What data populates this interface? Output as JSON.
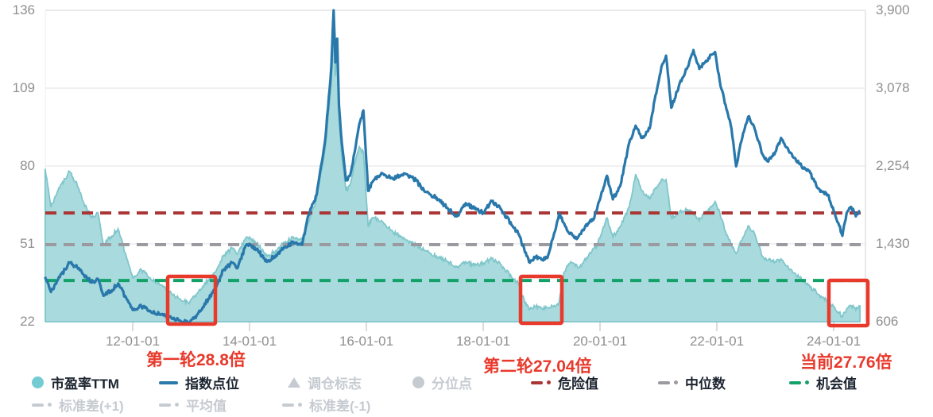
{
  "chart_data": {
    "type": "line",
    "title": "",
    "x_axis": {
      "tick_labels": [
        "12-01-01",
        "14-01-01",
        "16-01-01",
        "18-01-01",
        "20-01-01",
        "22-01-01",
        "24-01-01"
      ],
      "tick_years": [
        2012,
        2014,
        2016,
        2018,
        2020,
        2022,
        2024
      ],
      "min": 2010.5,
      "max": 2024.55,
      "grid": false
    },
    "y_left": {
      "label_values": [
        "136",
        "109",
        "80",
        "51",
        "22"
      ],
      "min": 22,
      "max": 136
    },
    "y_right": {
      "label_values": [
        "3,900",
        "3,078",
        "2,254",
        "1,430",
        "606"
      ],
      "min": 606,
      "max": 3900
    },
    "reference_lines": [
      {
        "key": "danger",
        "label": "危险值",
        "value": 61.8,
        "color": "#a93634"
      },
      {
        "key": "median",
        "label": "中位数",
        "value": 50.2,
        "color": "#9a9aa0"
      },
      {
        "key": "opportunity",
        "label": "机会值",
        "value": 37.1,
        "color": "#12a269"
      }
    ],
    "series": [
      {
        "key": "pe-ttm",
        "name": "市盈率TTM",
        "kind": "area",
        "axis": "left",
        "line_color": "#7fc6cb",
        "fill_color": "#a9dadd",
        "points": [
          [
            2010.5,
            78
          ],
          [
            2010.6,
            64
          ],
          [
            2010.72,
            70
          ],
          [
            2010.92,
            77
          ],
          [
            2011.05,
            72
          ],
          [
            2011.15,
            66
          ],
          [
            2011.3,
            60
          ],
          [
            2011.4,
            62
          ],
          [
            2011.5,
            50
          ],
          [
            2011.62,
            53
          ],
          [
            2011.75,
            56
          ],
          [
            2011.9,
            45
          ],
          [
            2012.0,
            38
          ],
          [
            2012.15,
            41
          ],
          [
            2012.3,
            38
          ],
          [
            2012.45,
            36
          ],
          [
            2012.6,
            33.5
          ],
          [
            2012.75,
            31
          ],
          [
            2012.88,
            29.5
          ],
          [
            2012.95,
            28.8
          ],
          [
            2013.05,
            31
          ],
          [
            2013.2,
            35
          ],
          [
            2013.4,
            40
          ],
          [
            2013.55,
            46
          ],
          [
            2013.7,
            49
          ],
          [
            2013.8,
            47
          ],
          [
            2013.92,
            52
          ],
          [
            2014.0,
            53
          ],
          [
            2014.15,
            50
          ],
          [
            2014.3,
            46
          ],
          [
            2014.45,
            48
          ],
          [
            2014.6,
            51
          ],
          [
            2014.75,
            53
          ],
          [
            2014.9,
            52
          ],
          [
            2015.0,
            58
          ],
          [
            2015.15,
            67
          ],
          [
            2015.3,
            86
          ],
          [
            2015.4,
            110
          ],
          [
            2015.44,
            134
          ],
          [
            2015.47,
            112
          ],
          [
            2015.5,
            120
          ],
          [
            2015.53,
            97
          ],
          [
            2015.58,
            82
          ],
          [
            2015.65,
            70
          ],
          [
            2015.72,
            72
          ],
          [
            2015.8,
            80
          ],
          [
            2015.88,
            86
          ],
          [
            2015.95,
            84
          ],
          [
            2016.03,
            57
          ],
          [
            2016.1,
            60
          ],
          [
            2016.26,
            59
          ],
          [
            2016.45,
            55
          ],
          [
            2016.67,
            52
          ],
          [
            2016.85,
            50
          ],
          [
            2017.0,
            48
          ],
          [
            2017.2,
            46
          ],
          [
            2017.4,
            44
          ],
          [
            2017.55,
            42
          ],
          [
            2017.7,
            44
          ],
          [
            2017.85,
            42.5
          ],
          [
            2018.0,
            43.5
          ],
          [
            2018.15,
            45
          ],
          [
            2018.3,
            43
          ],
          [
            2018.5,
            38
          ],
          [
            2018.6,
            36
          ],
          [
            2018.7,
            30
          ],
          [
            2018.8,
            26.5
          ],
          [
            2018.9,
            27.5
          ],
          [
            2019.0,
            26.8
          ],
          [
            2019.1,
            27.04
          ],
          [
            2019.2,
            27.5
          ],
          [
            2019.3,
            29
          ],
          [
            2019.38,
            40
          ],
          [
            2019.5,
            44
          ],
          [
            2019.65,
            42
          ],
          [
            2019.8,
            46
          ],
          [
            2019.95,
            50
          ],
          [
            2020.12,
            60
          ],
          [
            2020.22,
            53
          ],
          [
            2020.35,
            57
          ],
          [
            2020.5,
            64
          ],
          [
            2020.61,
            76
          ],
          [
            2020.72,
            70
          ],
          [
            2020.85,
            67
          ],
          [
            2020.95,
            71
          ],
          [
            2021.05,
            74
          ],
          [
            2021.13,
            74
          ],
          [
            2021.22,
            60
          ],
          [
            2021.35,
            62
          ],
          [
            2021.5,
            63
          ],
          [
            2021.6,
            62
          ],
          [
            2021.7,
            59
          ],
          [
            2021.8,
            62
          ],
          [
            2021.9,
            64
          ],
          [
            2021.97,
            66
          ],
          [
            2022.05,
            62
          ],
          [
            2022.15,
            55
          ],
          [
            2022.25,
            50
          ],
          [
            2022.33,
            47
          ],
          [
            2022.45,
            53
          ],
          [
            2022.55,
            57
          ],
          [
            2022.65,
            54
          ],
          [
            2022.78,
            46
          ],
          [
            2022.88,
            44.5
          ],
          [
            2023.0,
            44
          ],
          [
            2023.1,
            45
          ],
          [
            2023.2,
            42.5
          ],
          [
            2023.3,
            40
          ],
          [
            2023.45,
            37.5
          ],
          [
            2023.6,
            34.5
          ],
          [
            2023.7,
            33
          ],
          [
            2023.8,
            31
          ],
          [
            2023.9,
            29.5
          ],
          [
            2024.0,
            27.5
          ],
          [
            2024.08,
            25.5
          ],
          [
            2024.15,
            23.8
          ],
          [
            2024.22,
            26.5
          ],
          [
            2024.3,
            27.9
          ],
          [
            2024.38,
            26.3
          ],
          [
            2024.45,
            27.76
          ]
        ]
      },
      {
        "key": "index",
        "name": "指数点位",
        "kind": "line",
        "axis": "right",
        "line_color": "#2878ab",
        "points": [
          [
            2010.5,
            1080
          ],
          [
            2010.6,
            920
          ],
          [
            2010.72,
            1050
          ],
          [
            2010.92,
            1230
          ],
          [
            2011.05,
            1180
          ],
          [
            2011.15,
            1110
          ],
          [
            2011.3,
            1020
          ],
          [
            2011.4,
            1060
          ],
          [
            2011.5,
            880
          ],
          [
            2011.62,
            930
          ],
          [
            2011.75,
            1010
          ],
          [
            2011.9,
            840
          ],
          [
            2012.0,
            730
          ],
          [
            2012.15,
            770
          ],
          [
            2012.3,
            720
          ],
          [
            2012.45,
            690
          ],
          [
            2012.6,
            660
          ],
          [
            2012.75,
            630
          ],
          [
            2012.88,
            605
          ],
          [
            2012.95,
            590
          ],
          [
            2013.05,
            640
          ],
          [
            2013.2,
            760
          ],
          [
            2013.4,
            950
          ],
          [
            2013.55,
            1150
          ],
          [
            2013.7,
            1230
          ],
          [
            2013.8,
            1180
          ],
          [
            2013.92,
            1390
          ],
          [
            2014.0,
            1430
          ],
          [
            2014.15,
            1350
          ],
          [
            2014.3,
            1240
          ],
          [
            2014.45,
            1310
          ],
          [
            2014.6,
            1390
          ],
          [
            2014.75,
            1450
          ],
          [
            2014.9,
            1420
          ],
          [
            2015.0,
            1720
          ],
          [
            2015.15,
            1950
          ],
          [
            2015.3,
            2550
          ],
          [
            2015.4,
            3300
          ],
          [
            2015.44,
            3950
          ],
          [
            2015.47,
            3350
          ],
          [
            2015.5,
            3600
          ],
          [
            2015.53,
            2900
          ],
          [
            2015.58,
            2500
          ],
          [
            2015.65,
            2100
          ],
          [
            2015.72,
            2150
          ],
          [
            2015.8,
            2400
          ],
          [
            2015.88,
            2700
          ],
          [
            2015.95,
            2840
          ],
          [
            2016.03,
            1990
          ],
          [
            2016.1,
            2080
          ],
          [
            2016.26,
            2180
          ],
          [
            2016.45,
            2120
          ],
          [
            2016.67,
            2170
          ],
          [
            2016.85,
            2100
          ],
          [
            2017.0,
            1980
          ],
          [
            2017.2,
            1920
          ],
          [
            2017.4,
            1800
          ],
          [
            2017.55,
            1720
          ],
          [
            2017.7,
            1860
          ],
          [
            2017.85,
            1800
          ],
          [
            2018.0,
            1760
          ],
          [
            2018.15,
            1880
          ],
          [
            2018.3,
            1800
          ],
          [
            2018.5,
            1620
          ],
          [
            2018.6,
            1540
          ],
          [
            2018.7,
            1380
          ],
          [
            2018.8,
            1230
          ],
          [
            2018.9,
            1290
          ],
          [
            2019.0,
            1260
          ],
          [
            2019.1,
            1280
          ],
          [
            2019.2,
            1500
          ],
          [
            2019.3,
            1750
          ],
          [
            2019.45,
            1560
          ],
          [
            2019.6,
            1480
          ],
          [
            2019.75,
            1620
          ],
          [
            2019.9,
            1700
          ],
          [
            2020.0,
            1900
          ],
          [
            2020.12,
            2150
          ],
          [
            2020.22,
            1900
          ],
          [
            2020.35,
            2050
          ],
          [
            2020.5,
            2500
          ],
          [
            2020.61,
            2680
          ],
          [
            2020.72,
            2550
          ],
          [
            2020.85,
            2650
          ],
          [
            2020.95,
            3000
          ],
          [
            2021.05,
            3300
          ],
          [
            2021.13,
            3420
          ],
          [
            2021.22,
            2870
          ],
          [
            2021.35,
            3100
          ],
          [
            2021.5,
            3300
          ],
          [
            2021.6,
            3480
          ],
          [
            2021.7,
            3280
          ],
          [
            2021.8,
            3350
          ],
          [
            2021.9,
            3430
          ],
          [
            2021.97,
            3460
          ],
          [
            2022.05,
            3150
          ],
          [
            2022.15,
            2900
          ],
          [
            2022.25,
            2650
          ],
          [
            2022.33,
            2250
          ],
          [
            2022.45,
            2600
          ],
          [
            2022.55,
            2780
          ],
          [
            2022.65,
            2640
          ],
          [
            2022.78,
            2380
          ],
          [
            2022.88,
            2300
          ],
          [
            2023.0,
            2400
          ],
          [
            2023.1,
            2550
          ],
          [
            2023.2,
            2450
          ],
          [
            2023.3,
            2350
          ],
          [
            2023.45,
            2250
          ],
          [
            2023.6,
            2180
          ],
          [
            2023.7,
            2050
          ],
          [
            2023.8,
            1980
          ],
          [
            2023.9,
            1950
          ],
          [
            2024.0,
            1780
          ],
          [
            2024.08,
            1650
          ],
          [
            2024.15,
            1514
          ],
          [
            2024.22,
            1750
          ],
          [
            2024.3,
            1820
          ],
          [
            2024.38,
            1720
          ],
          [
            2024.45,
            1776
          ]
        ]
      }
    ],
    "highlight_colors": {
      "box_stroke": "#e8392b"
    }
  },
  "annotations": [
    {
      "key": "round-1",
      "text": "第一轮28.8倍"
    },
    {
      "key": "round-2",
      "text": "第二轮27.04倍"
    },
    {
      "key": "current",
      "text": "当前27.76倍"
    }
  ],
  "legend": {
    "rows": [
      [
        {
          "key": "pe-ttm",
          "label": "市盈率TTM",
          "marker": "circle",
          "color": "#72ccd2",
          "active": true
        },
        {
          "key": "index-level",
          "label": "指数点位",
          "marker": "line",
          "color": "#2878ab",
          "active": true
        },
        {
          "key": "rebalance-marker",
          "label": "调仓标志",
          "marker": "triangle",
          "color": "#c6cbd1",
          "active": false
        },
        {
          "key": "percentile-point",
          "label": "分位点",
          "marker": "circle",
          "color": "#c6cbd1",
          "active": false
        },
        {
          "key": "danger-value",
          "label": "危险值",
          "marker": "dashdot",
          "color": "#a93634",
          "active": true
        },
        {
          "key": "median-value",
          "label": "中位数",
          "marker": "dashdot",
          "color": "#9a9aa0",
          "active": true
        },
        {
          "key": "opportunity-value",
          "label": "机会值",
          "marker": "dashdot",
          "color": "#12a269",
          "active": true
        }
      ],
      [
        {
          "key": "stddev-plus1",
          "label": "标准差(+1)",
          "marker": "dashdot",
          "color": "#c6cbd1",
          "active": false
        },
        {
          "key": "mean-value",
          "label": "平均值",
          "marker": "dashdot",
          "color": "#c6cbd1",
          "active": false
        },
        {
          "key": "stddev-minus1",
          "label": "标准差(-1)",
          "marker": "dashdot",
          "color": "#c6cbd1",
          "active": false
        }
      ]
    ]
  }
}
